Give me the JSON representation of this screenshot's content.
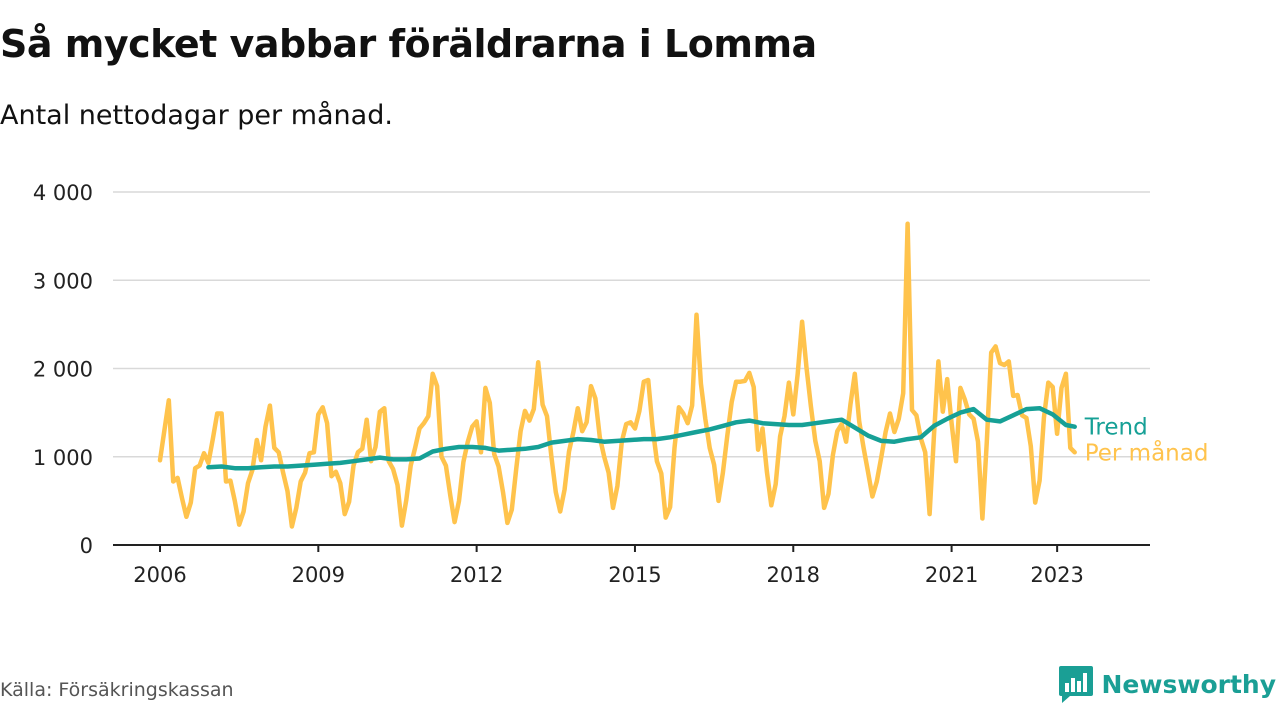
{
  "header": {
    "title": "Så mycket vabbar föräldrarna i Lomma",
    "subtitle": "Antal nettodagar per månad."
  },
  "footer": {
    "source": "Källa: Försäkringskassan",
    "brand": "Newsworthy",
    "brand_icon": "bar-chart-speech-bubble-icon"
  },
  "colors": {
    "monthly": "#ffc34c",
    "trend": "#16a096",
    "grid": "#d9d9d9",
    "axis": "#222222",
    "text": "#222222"
  },
  "chart_data": {
    "type": "line",
    "title": "",
    "xlabel": "",
    "ylabel": "",
    "ylim": [
      0,
      4000
    ],
    "yticks": [
      0,
      1000,
      2000,
      3000,
      4000
    ],
    "ytick_labels": [
      "0",
      "1 000",
      "2 000",
      "3 000",
      "4 000"
    ],
    "xticks": [
      2006,
      2009,
      2012,
      2015,
      2018,
      2021,
      2023
    ],
    "xtick_labels": [
      "2006",
      "2009",
      "2012",
      "2015",
      "2018",
      "2021",
      "2023"
    ],
    "grid": "horizontal",
    "legend": "end-of-line labels",
    "series": [
      {
        "name": "Per månad",
        "color": "#ffc34c",
        "x": [
          "2006-01",
          "2006-02",
          "2006-03",
          "2006-04",
          "2006-05",
          "2006-06",
          "2006-07",
          "2006-08",
          "2006-09",
          "2006-10",
          "2006-11",
          "2006-12",
          "2007-01",
          "2007-02",
          "2007-03",
          "2007-04",
          "2007-05",
          "2007-06",
          "2007-07",
          "2007-08",
          "2007-09",
          "2007-10",
          "2007-11",
          "2007-12",
          "2008-01",
          "2008-02",
          "2008-03",
          "2008-04",
          "2008-05",
          "2008-06",
          "2008-07",
          "2008-08",
          "2008-09",
          "2008-10",
          "2008-11",
          "2008-12",
          "2009-01",
          "2009-02",
          "2009-03",
          "2009-04",
          "2009-05",
          "2009-06",
          "2009-07",
          "2009-08",
          "2009-09",
          "2009-10",
          "2009-11",
          "2009-12",
          "2010-01",
          "2010-02",
          "2010-03",
          "2010-04",
          "2010-05",
          "2010-06",
          "2010-07",
          "2010-08",
          "2010-09",
          "2010-10",
          "2010-11",
          "2010-12",
          "2011-01",
          "2011-02",
          "2011-03",
          "2011-04",
          "2011-05",
          "2011-06",
          "2011-07",
          "2011-08",
          "2011-09",
          "2011-10",
          "2011-11",
          "2011-12",
          "2012-01",
          "2012-02",
          "2012-03",
          "2012-04",
          "2012-05",
          "2012-06",
          "2012-07",
          "2012-08",
          "2012-09",
          "2012-10",
          "2012-11",
          "2012-12",
          "2013-01",
          "2013-02",
          "2013-03",
          "2013-04",
          "2013-05",
          "2013-06",
          "2013-07",
          "2013-08",
          "2013-09",
          "2013-10",
          "2013-11",
          "2013-12",
          "2014-01",
          "2014-02",
          "2014-03",
          "2014-04",
          "2014-05",
          "2014-06",
          "2014-07",
          "2014-08",
          "2014-09",
          "2014-10",
          "2014-11",
          "2014-12",
          "2015-01",
          "2015-02",
          "2015-03",
          "2015-04",
          "2015-05",
          "2015-06",
          "2015-07",
          "2015-08",
          "2015-09",
          "2015-10",
          "2015-11",
          "2015-12",
          "2016-01",
          "2016-02",
          "2016-03",
          "2016-04",
          "2016-05",
          "2016-06",
          "2016-07",
          "2016-08",
          "2016-09",
          "2016-10",
          "2016-11",
          "2016-12",
          "2017-01",
          "2017-02",
          "2017-03",
          "2017-04",
          "2017-05",
          "2017-06",
          "2017-07",
          "2017-08",
          "2017-09",
          "2017-10",
          "2017-11",
          "2017-12",
          "2018-01",
          "2018-02",
          "2018-03",
          "2018-04",
          "2018-05",
          "2018-06",
          "2018-07",
          "2018-08",
          "2018-09",
          "2018-10",
          "2018-11",
          "2018-12",
          "2019-01",
          "2019-02",
          "2019-03",
          "2019-04",
          "2019-05",
          "2019-06",
          "2019-07",
          "2019-08",
          "2019-09",
          "2019-10",
          "2019-11",
          "2019-12",
          "2020-01",
          "2020-02",
          "2020-03",
          "2020-04",
          "2020-05",
          "2020-06",
          "2020-07",
          "2020-08",
          "2020-09",
          "2020-10",
          "2020-11",
          "2020-12",
          "2021-01",
          "2021-02",
          "2021-03",
          "2021-04",
          "2021-05",
          "2021-06",
          "2021-07",
          "2021-08",
          "2021-09",
          "2021-10",
          "2021-11",
          "2021-12",
          "2022-01",
          "2022-02",
          "2022-03",
          "2022-04",
          "2022-05",
          "2022-06",
          "2022-07",
          "2022-08",
          "2022-09",
          "2022-10",
          "2022-11",
          "2022-12",
          "2023-01",
          "2023-02",
          "2023-03",
          "2023-04",
          "2023-05"
        ],
        "values": [
          960,
          1300,
          1640,
          720,
          760,
          530,
          320,
          480,
          870,
          900,
          1040,
          930,
          1200,
          1490,
          1490,
          720,
          730,
          500,
          230,
          380,
          700,
          850,
          1190,
          960,
          1340,
          1580,
          1100,
          1050,
          820,
          610,
          210,
          420,
          720,
          820,
          1040,
          1050,
          1480,
          1560,
          1380,
          780,
          830,
          700,
          350,
          490,
          900,
          1050,
          1090,
          1420,
          950,
          1110,
          1510,
          1550,
          950,
          860,
          680,
          220,
          510,
          900,
          1100,
          1320,
          1380,
          1460,
          1940,
          1800,
          1000,
          900,
          560,
          260,
          500,
          940,
          1170,
          1340,
          1400,
          1050,
          1780,
          1610,
          1030,
          890,
          600,
          250,
          400,
          860,
          1290,
          1520,
          1410,
          1540,
          2070,
          1590,
          1460,
          1000,
          600,
          380,
          630,
          1060,
          1280,
          1550,
          1290,
          1390,
          1800,
          1660,
          1220,
          1000,
          820,
          420,
          670,
          1170,
          1370,
          1390,
          1320,
          1520,
          1850,
          1870,
          1340,
          950,
          810,
          310,
          430,
          1100,
          1560,
          1490,
          1380,
          1580,
          2610,
          1830,
          1430,
          1100,
          910,
          500,
          820,
          1240,
          1620,
          1850,
          1850,
          1860,
          1950,
          1790,
          1080,
          1320,
          830,
          450,
          690,
          1230,
          1460,
          1840,
          1480,
          1940,
          2530,
          2010,
          1570,
          1180,
          950,
          420,
          580,
          1020,
          1290,
          1370,
          1170,
          1590,
          1940,
          1400,
          1100,
          830,
          550,
          720,
          990,
          1280,
          1490,
          1280,
          1430,
          1720,
          3640,
          1530,
          1470,
          1210,
          1050,
          350,
          1250,
          2080,
          1510,
          1880,
          1380,
          950,
          1780,
          1650,
          1480,
          1430,
          1170,
          300,
          1170,
          2180,
          2250,
          2060,
          2040,
          2080,
          1690,
          1700,
          1470,
          1440,
          1120,
          480,
          730,
          1440,
          1840,
          1790,
          1260,
          1780,
          1940,
          1100,
          1050
        ]
      },
      {
        "name": "Trend",
        "color": "#16a096",
        "x": [
          "2006-12",
          "2007-03",
          "2007-06",
          "2007-09",
          "2007-12",
          "2008-03",
          "2008-06",
          "2008-09",
          "2008-12",
          "2009-03",
          "2009-06",
          "2009-09",
          "2009-12",
          "2010-03",
          "2010-06",
          "2010-09",
          "2010-12",
          "2011-03",
          "2011-06",
          "2011-09",
          "2011-12",
          "2012-03",
          "2012-06",
          "2012-09",
          "2012-12",
          "2013-03",
          "2013-06",
          "2013-09",
          "2013-12",
          "2014-03",
          "2014-06",
          "2014-09",
          "2014-12",
          "2015-03",
          "2015-06",
          "2015-09",
          "2015-12",
          "2016-03",
          "2016-06",
          "2016-09",
          "2016-12",
          "2017-03",
          "2017-06",
          "2017-09",
          "2017-12",
          "2018-03",
          "2018-06",
          "2018-09",
          "2018-12",
          "2019-03",
          "2019-06",
          "2019-09",
          "2019-12",
          "2020-03",
          "2020-06",
          "2020-09",
          "2020-12",
          "2021-03",
          "2021-06",
          "2021-09",
          "2021-12",
          "2022-03",
          "2022-06",
          "2022-09",
          "2022-12",
          "2023-03",
          "2023-05"
        ],
        "values": [
          880,
          890,
          870,
          870,
          880,
          890,
          890,
          900,
          910,
          920,
          930,
          950,
          970,
          990,
          970,
          970,
          980,
          1060,
          1090,
          1110,
          1110,
          1100,
          1070,
          1080,
          1090,
          1110,
          1160,
          1180,
          1200,
          1190,
          1170,
          1180,
          1190,
          1200,
          1200,
          1220,
          1250,
          1280,
          1310,
          1350,
          1390,
          1410,
          1380,
          1370,
          1360,
          1360,
          1380,
          1400,
          1420,
          1330,
          1240,
          1180,
          1170,
          1200,
          1220,
          1350,
          1430,
          1500,
          1540,
          1420,
          1400,
          1470,
          1540,
          1550,
          1480,
          1360,
          1340
        ]
      }
    ]
  }
}
